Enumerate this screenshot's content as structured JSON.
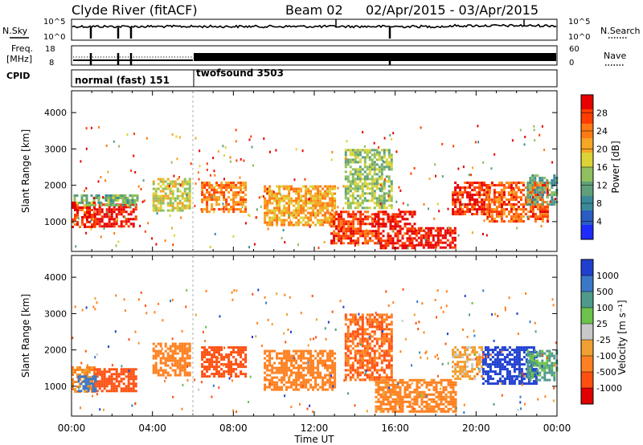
{
  "header": {
    "station": "Clyde River (fitACF)",
    "beam": "Beam 02",
    "date_range": "02/Apr/2015 - 03/Apr/2015"
  },
  "panels": {
    "nsky": {
      "label": "N.Sky",
      "right_label": "N.Search",
      "tick_top": "10^5",
      "tick_bottom": "10^0",
      "right_tick_top": "10^5",
      "right_tick_bottom": "10^0"
    },
    "freq": {
      "label_line1": "Freq.",
      "label_line2": "[MHz]",
      "tick_top": "18",
      "tick_bottom": "8",
      "right_tick_top": "60",
      "right_tick_bottom": "0",
      "right_label": "Nave"
    },
    "cpid": {
      "label": "CPID",
      "mode1": "normal (fast) 151",
      "mode2": "twofsound 3503"
    }
  },
  "x_axis": {
    "label": "Time UT",
    "ticks": [
      "00:00",
      "04:00",
      "08:00",
      "12:00",
      "16:00",
      "20:00",
      "00:00"
    ]
  },
  "chart_data": [
    {
      "type": "heatmap",
      "panel": "power",
      "ylabel": "Slant Range [km]",
      "y_ticks": [
        1000,
        2000,
        3000,
        4000
      ],
      "ylim": [
        180,
        4600
      ],
      "xlim_hours": [
        0,
        24
      ],
      "colorbar": {
        "label": "Power [dB]",
        "ticks": [
          "28",
          "24",
          "20",
          "16",
          "12",
          "8",
          "4"
        ],
        "range": [
          0,
          30
        ]
      },
      "regions": [
        {
          "t": [
            0.0,
            1.1
          ],
          "r": [
            850,
            1550
          ],
          "v": 27
        },
        {
          "t": [
            1.1,
            3.2
          ],
          "r": [
            850,
            1500
          ],
          "v": 28
        },
        {
          "t": [
            0.1,
            3.2
          ],
          "r": [
            1450,
            1750
          ],
          "v": 12
        },
        {
          "t": [
            4.0,
            5.8
          ],
          "r": [
            1300,
            2200
          ],
          "v": 16
        },
        {
          "t": [
            6.4,
            8.6
          ],
          "r": [
            1300,
            2100
          ],
          "v": 22
        },
        {
          "t": [
            9.5,
            13.0
          ],
          "r": [
            900,
            2000
          ],
          "v": 20
        },
        {
          "t": [
            12.8,
            15.0
          ],
          "r": [
            400,
            1300
          ],
          "v": 26
        },
        {
          "t": [
            13.5,
            15.8
          ],
          "r": [
            1400,
            3000
          ],
          "v": 14
        },
        {
          "t": [
            15.0,
            17.0
          ],
          "r": [
            300,
            1300
          ],
          "v": 28
        },
        {
          "t": [
            17.0,
            19.0
          ],
          "r": [
            300,
            850
          ],
          "v": 29
        },
        {
          "t": [
            18.8,
            20.6
          ],
          "r": [
            1200,
            2100
          ],
          "v": 27
        },
        {
          "t": [
            20.5,
            23.5
          ],
          "r": [
            1000,
            2100
          ],
          "v": 24
        },
        {
          "t": [
            22.5,
            24.0
          ],
          "r": [
            1500,
            2300
          ],
          "v": 10
        }
      ]
    },
    {
      "type": "heatmap",
      "panel": "velocity",
      "ylabel": "Slant Range [km]",
      "y_ticks": [
        1000,
        2000,
        3000,
        4000
      ],
      "ylim": [
        180,
        4600
      ],
      "xlim_hours": [
        0,
        24
      ],
      "colorbar": {
        "label": "Velocity [m s⁻¹]",
        "ticks": [
          "1000",
          "500",
          "100",
          "25",
          "-25",
          "-100",
          "-500",
          "-1000"
        ]
      },
      "regions": [
        {
          "t": [
            0.0,
            1.1
          ],
          "r": [
            850,
            1550
          ],
          "v": -100
        },
        {
          "t": [
            1.1,
            3.2
          ],
          "r": [
            850,
            1500
          ],
          "v": -500
        },
        {
          "t": [
            0.3,
            1.2
          ],
          "r": [
            900,
            1300
          ],
          "v": 500
        },
        {
          "t": [
            4.0,
            5.8
          ],
          "r": [
            1300,
            2200
          ],
          "v": -200
        },
        {
          "t": [
            6.4,
            8.6
          ],
          "r": [
            1300,
            2100
          ],
          "v": -400
        },
        {
          "t": [
            9.5,
            13.0
          ],
          "r": [
            900,
            2000
          ],
          "v": -200
        },
        {
          "t": [
            13.5,
            15.8
          ],
          "r": [
            1200,
            3000
          ],
          "v": -300
        },
        {
          "t": [
            15.0,
            19.0
          ],
          "r": [
            300,
            1200
          ],
          "v": -150
        },
        {
          "t": [
            18.8,
            20.3
          ],
          "r": [
            1200,
            2100
          ],
          "v": -60
        },
        {
          "t": [
            20.3,
            23.0
          ],
          "r": [
            1100,
            2100
          ],
          "v": 800
        },
        {
          "t": [
            22.5,
            24.0
          ],
          "r": [
            1200,
            2000
          ],
          "v": 120
        }
      ]
    }
  ]
}
